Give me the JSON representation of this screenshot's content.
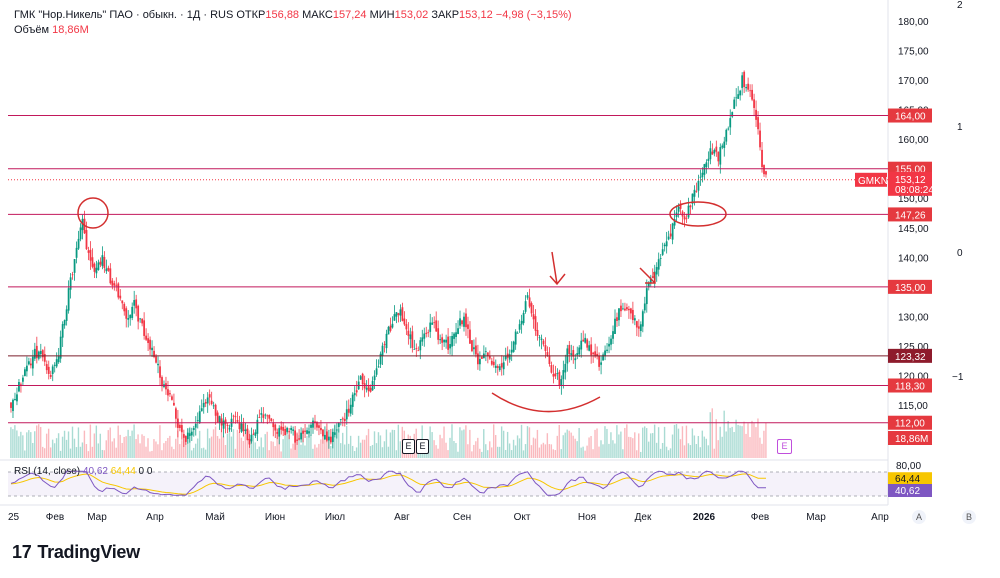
{
  "header": {
    "title": "ГМК \"Нор.Никель\" ПАО · обыкн. · 1Д · RUS",
    "open_label": "ОТКР",
    "open_value": "156,88",
    "high_label": "МАКС",
    "high_value": "157,24",
    "low_label": "МИН",
    "low_value": "153,02",
    "close_label": "ЗАКР",
    "close_value": "153,12",
    "change": "−4,98 (−3,15%)",
    "volume_label": "Объём",
    "volume_value": "18,86M"
  },
  "rsi_legend": {
    "name": "RSI (14, close)",
    "value1": "40,62",
    "value2": "64,44",
    "extra": "0 0"
  },
  "ticker_tag": {
    "symbol": "GMKN",
    "price": "153,12",
    "time": "08:08:24"
  },
  "level_tags": [
    "164,00",
    "155,00",
    "147,26",
    "135,00",
    "123,32",
    "118,30",
    "112,00"
  ],
  "volume_tag": "18,86M",
  "rsi_tags": {
    "upper": "80,00",
    "rsi_ma": "64,44",
    "rsi": "40,62"
  },
  "right_side_numbers": [
    "2",
    "1",
    "0",
    "−1"
  ],
  "event_markers": [
    "E",
    "E"
  ],
  "logo_text": "TradingView",
  "corner_buttons": [
    "A",
    "B"
  ],
  "colors": {
    "up": "#089981",
    "down": "#f23645",
    "line": "#c2185b",
    "rsi": "#7e57c2",
    "rsi_ma": "#f7c600"
  },
  "chart_data": {
    "type": "candlestick",
    "symbol": "GMKN",
    "title": "ГМК \"Нор.Никель\" ПАО · обыкн. · 1Д · RUS",
    "ylim": [
      105,
      183
    ],
    "y_ticks": [
      "180,00",
      "175,00",
      "170,00",
      "165,00",
      "160,00",
      "150,00",
      "145,00",
      "140,00",
      "130,00",
      "125,00",
      "120,00",
      "115,00"
    ],
    "y_tick_values": [
      180,
      175,
      170,
      165,
      160,
      150,
      145,
      140,
      130,
      125,
      120,
      115
    ],
    "x_ticks": [
      "25",
      "Фев",
      "Мар",
      "Апр",
      "Май",
      "Июн",
      "Июл",
      "Авг",
      "Сен",
      "Окт",
      "Ноя",
      "Дек",
      "2026",
      "Фев",
      "Мар",
      "Апр"
    ],
    "horizontal_levels": [
      164.0,
      155.0,
      147.26,
      135.0,
      123.32,
      118.3,
      112.0
    ],
    "last_price": 153.12,
    "close_path": [
      [
        0,
        115
      ],
      [
        4,
        118
      ],
      [
        8,
        121
      ],
      [
        12,
        124
      ],
      [
        16,
        123
      ],
      [
        20,
        120
      ],
      [
        23,
        122
      ],
      [
        26,
        128
      ],
      [
        30,
        136
      ],
      [
        33,
        141
      ],
      [
        36,
        146
      ],
      [
        38,
        142
      ],
      [
        42,
        138
      ],
      [
        46,
        140
      ],
      [
        50,
        136
      ],
      [
        54,
        134
      ],
      [
        58,
        130
      ],
      [
        62,
        132
      ],
      [
        66,
        128
      ],
      [
        68,
        126
      ],
      [
        72,
        124
      ],
      [
        76,
        119
      ],
      [
        80,
        116
      ],
      [
        84,
        112
      ],
      [
        88,
        109
      ],
      [
        92,
        111
      ],
      [
        96,
        114
      ],
      [
        100,
        116
      ],
      [
        104,
        113
      ],
      [
        108,
        111
      ],
      [
        112,
        113
      ],
      [
        116,
        111
      ],
      [
        120,
        109
      ],
      [
        124,
        112
      ],
      [
        128,
        114
      ],
      [
        132,
        112
      ],
      [
        136,
        110
      ],
      [
        140,
        111
      ],
      [
        144,
        109
      ],
      [
        148,
        110
      ],
      [
        152,
        112
      ],
      [
        156,
        110
      ],
      [
        160,
        109
      ],
      [
        164,
        111
      ],
      [
        168,
        113
      ],
      [
        172,
        116
      ],
      [
        176,
        119
      ],
      [
        180,
        117
      ],
      [
        184,
        121
      ],
      [
        188,
        126
      ],
      [
        192,
        129
      ],
      [
        196,
        131
      ],
      [
        200,
        127
      ],
      [
        204,
        124
      ],
      [
        208,
        127
      ],
      [
        212,
        129
      ],
      [
        216,
        126
      ],
      [
        220,
        125
      ],
      [
        224,
        128
      ],
      [
        228,
        130
      ],
      [
        232,
        125
      ],
      [
        236,
        122
      ],
      [
        240,
        124
      ],
      [
        244,
        121
      ],
      [
        248,
        122
      ],
      [
        252,
        125
      ],
      [
        256,
        129
      ],
      [
        260,
        133
      ],
      [
        264,
        128
      ],
      [
        268,
        126
      ],
      [
        272,
        121
      ],
      [
        276,
        119
      ],
      [
        280,
        124
      ],
      [
        284,
        123
      ],
      [
        288,
        126
      ],
      [
        292,
        124
      ],
      [
        296,
        122
      ],
      [
        300,
        124
      ],
      [
        304,
        129
      ],
      [
        308,
        132
      ],
      [
        312,
        130
      ],
      [
        316,
        128
      ],
      [
        320,
        134
      ],
      [
        324,
        138
      ],
      [
        328,
        141
      ],
      [
        332,
        144
      ],
      [
        336,
        148
      ],
      [
        340,
        147
      ],
      [
        344,
        151
      ],
      [
        348,
        155
      ],
      [
        352,
        158
      ],
      [
        356,
        157
      ],
      [
        360,
        161
      ],
      [
        364,
        166
      ],
      [
        368,
        170
      ],
      [
        372,
        168
      ],
      [
        376,
        162
      ],
      [
        378,
        156
      ],
      [
        380,
        153.12
      ]
    ],
    "rsi": {
      "period": 14,
      "value": 40.62,
      "ma_value": 64.44,
      "ylim": [
        20,
        80
      ]
    },
    "volume_last": "18,86M",
    "annotations": [
      "circle near high Mar",
      "arc under Oct–Nov lows",
      "arrow Oct",
      "arrow Dec",
      "circle at breakout Dec"
    ]
  }
}
